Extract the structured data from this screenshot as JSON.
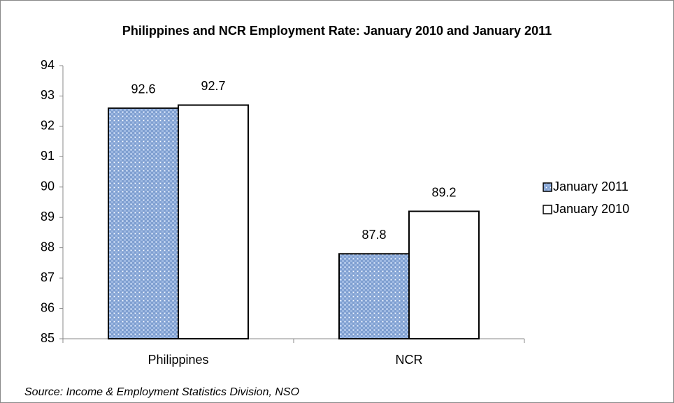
{
  "chart_data": {
    "type": "bar",
    "title": "Philippines and NCR Employment Rate: January 2010 and January 2011",
    "categories": [
      "Philippines",
      "NCR"
    ],
    "series": [
      {
        "name": "January 2011",
        "color": "#9db8e2",
        "values": [
          92.6,
          87.8
        ]
      },
      {
        "name": "January 2010",
        "color": "#ffffff",
        "values": [
          92.7,
          89.2
        ]
      }
    ],
    "ylim": [
      85,
      94
    ],
    "yticks": [
      85,
      86,
      87,
      88,
      89,
      90,
      91,
      92,
      93,
      94
    ],
    "grid": false,
    "legend": "right",
    "source": "Source: Income & Employment Statistics Division, NSO"
  }
}
